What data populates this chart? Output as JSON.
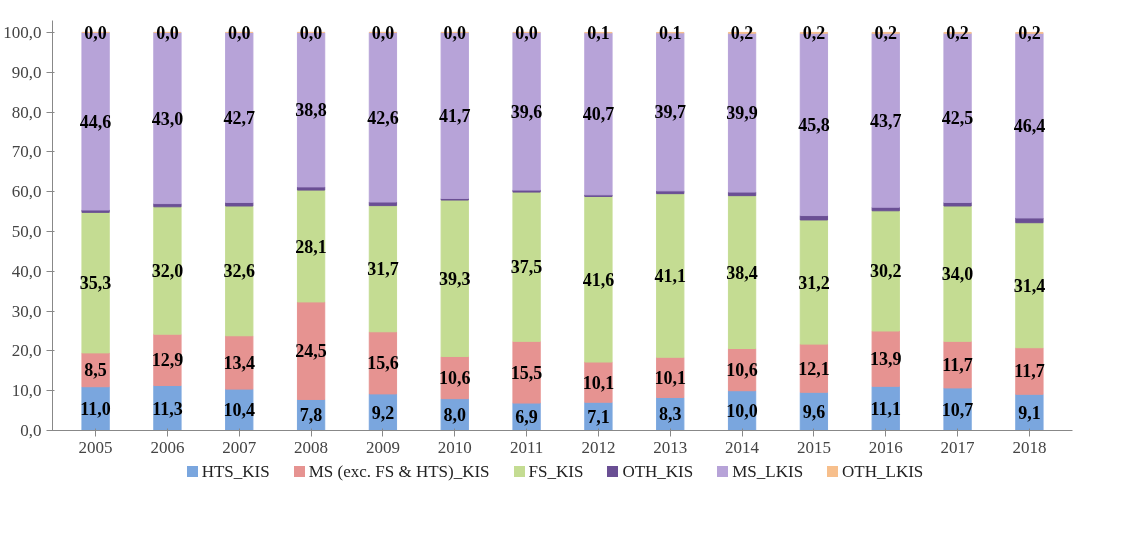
{
  "chart_data": {
    "type": "bar",
    "stacked": true,
    "categories": [
      "2005",
      "2006",
      "2007",
      "2008",
      "2009",
      "2010",
      "2011",
      "2012",
      "2013",
      "2014",
      "2015",
      "2016",
      "2017",
      "2018"
    ],
    "series": [
      {
        "name": "HTS_KIS",
        "color": "#7aa6de",
        "values": [
          11.0,
          11.3,
          10.4,
          7.8,
          9.2,
          8.0,
          6.9,
          7.1,
          8.3,
          10.0,
          9.6,
          11.1,
          10.7,
          9.1
        ],
        "value_labels": [
          "11,0",
          "11,3",
          "10,4",
          "7,8",
          "9,2",
          "8,0",
          "6,9",
          "7,1",
          "8,3",
          "10,0",
          "9,6",
          "11,1",
          "10,7",
          "9,1"
        ]
      },
      {
        "name": "MS (exc. FS & HTS)_KIS",
        "color": "#e69391",
        "values": [
          8.5,
          12.9,
          13.4,
          24.5,
          15.6,
          10.6,
          15.5,
          10.1,
          10.1,
          10.6,
          12.1,
          13.9,
          11.7,
          11.7
        ],
        "value_labels": [
          "8,5",
          "12,9",
          "13,4",
          "24,5",
          "15,6",
          "10,6",
          "15,5",
          "10,1",
          "10,1",
          "10,6",
          "12,1",
          "13,9",
          "11,7",
          "11,7"
        ]
      },
      {
        "name": "FS_KIS",
        "color": "#c4dc92",
        "values": [
          35.3,
          32.0,
          32.6,
          28.1,
          31.7,
          39.3,
          37.5,
          41.6,
          41.1,
          38.4,
          31.2,
          30.2,
          34.0,
          31.4
        ],
        "value_labels": [
          "35,3",
          "32,0",
          "32,6",
          "28,1",
          "31,7",
          "39,3",
          "37,5",
          "41,6",
          "41,1",
          "38,4",
          "31,2",
          "30,2",
          "34,0",
          "31,4"
        ]
      },
      {
        "name": "OTH_KIS",
        "color": "#6a4f94",
        "values": [
          0.6,
          0.8,
          0.9,
          0.8,
          0.9,
          0.4,
          0.5,
          0.4,
          0.7,
          0.9,
          1.1,
          0.9,
          0.9,
          1.2
        ]
      },
      {
        "name": "MS_LKIS",
        "color": "#b7a3d8",
        "values": [
          44.6,
          43.0,
          42.7,
          38.8,
          42.6,
          41.7,
          39.6,
          40.7,
          39.7,
          39.9,
          45.8,
          43.7,
          42.5,
          46.4
        ],
        "value_labels": [
          "44,6",
          "43,0",
          "42,7",
          "38,8",
          "42,6",
          "41,7",
          "39,6",
          "40,7",
          "39,7",
          "39,9",
          "45,8",
          "43,7",
          "42,5",
          "46,4"
        ]
      },
      {
        "name": "OTH_LKIS",
        "color": "#f7bf8c",
        "values": [
          0.0,
          0.0,
          0.0,
          0.0,
          0.0,
          0.0,
          0.0,
          0.1,
          0.1,
          0.2,
          0.2,
          0.2,
          0.2,
          0.2
        ],
        "value_labels": [
          "0,0",
          "0,0",
          "0,0",
          "0,0",
          "0,0",
          "0,0",
          "0,0",
          "0,1",
          "0,1",
          "0,2",
          "0,2",
          "0,2",
          "0,2",
          "0,2"
        ]
      }
    ],
    "ylim": [
      0,
      103
    ],
    "yticks": [
      {
        "value": 0,
        "label": "0,0"
      },
      {
        "value": 10,
        "label": "10,0"
      },
      {
        "value": 20,
        "label": "20,0"
      },
      {
        "value": 30,
        "label": "30,0"
      },
      {
        "value": 40,
        "label": "40,0"
      },
      {
        "value": 50,
        "label": "50,0"
      },
      {
        "value": 60,
        "label": "60,0"
      },
      {
        "value": 70,
        "label": "70,0"
      },
      {
        "value": 80,
        "label": "80,0"
      },
      {
        "value": 90,
        "label": "90,0"
      },
      {
        "value": 100,
        "label": "100,0"
      }
    ],
    "grid": false,
    "legend": "bottom"
  }
}
